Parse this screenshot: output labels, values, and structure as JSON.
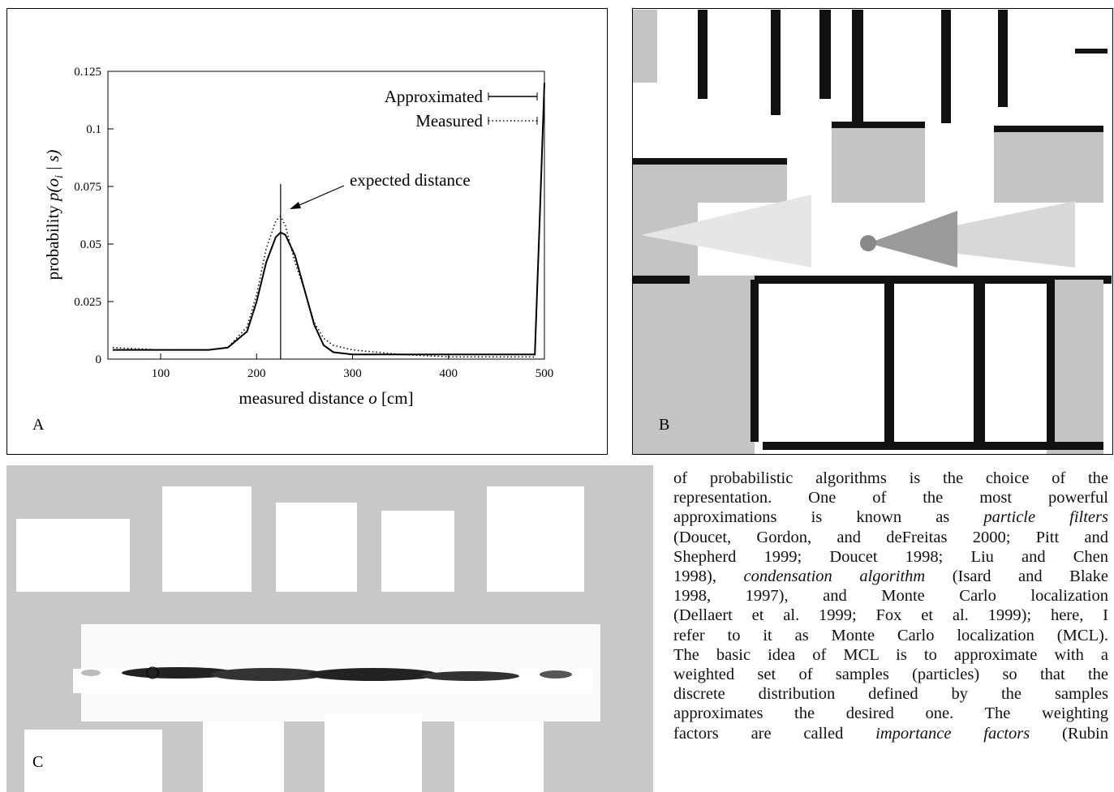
{
  "chart_data": {
    "type": "line",
    "xlabel": {
      "prefix": "measured distance ",
      "var": "o",
      "suffix": " [cm]"
    },
    "ylabel": {
      "prefix": "probability ",
      "var": "p(o",
      "sub": "i",
      "suffix": " | s)"
    },
    "x": [
      50,
      100,
      150,
      170,
      190,
      200,
      210,
      220,
      225,
      230,
      240,
      250,
      260,
      270,
      280,
      300,
      350,
      400,
      450,
      480,
      490,
      495,
      500
    ],
    "series": [
      {
        "name": "Approximated",
        "color": "#000000",
        "style": "solid",
        "values": [
          0.004,
          0.004,
          0.004,
          0.005,
          0.012,
          0.025,
          0.042,
          0.053,
          0.055,
          0.054,
          0.045,
          0.03,
          0.015,
          0.006,
          0.003,
          0.002,
          0.002,
          0.002,
          0.002,
          0.002,
          0.002,
          0.06,
          0.12
        ]
      },
      {
        "name": "Measured",
        "color": "#000000",
        "style": "dotted",
        "values": [
          0.005,
          0.004,
          0.004,
          0.005,
          0.014,
          0.028,
          0.048,
          0.06,
          0.062,
          0.058,
          0.042,
          0.03,
          0.016,
          0.009,
          0.006,
          0.004,
          0.002,
          0.001,
          0.001,
          0.001,
          0.001,
          0.06,
          0.12
        ]
      }
    ],
    "annotation": "expected distance",
    "expected_line": {
      "x": 225,
      "top": 0.076
    },
    "xlim": [
      45,
      500
    ],
    "ylim": [
      0,
      0.125
    ],
    "xticks": [
      100,
      200,
      300,
      400,
      500
    ],
    "yticks": [
      0,
      0.025,
      0.05,
      0.075,
      0.1,
      0.125
    ],
    "legend": "top-right"
  },
  "panel_labels": [
    "A",
    "B",
    "C"
  ],
  "text": {
    "lines": [
      [
        {
          "text": "of probabilistic algorithms is the choice of the"
        }
      ],
      [
        {
          "text": "representation. One of the most powerful"
        }
      ],
      [
        {
          "text": "approximations is known as "
        },
        {
          "text": "particle filters",
          "em": true
        }
      ],
      [
        {
          "text": "(Doucet, Gordon, and deFreitas 2000; Pitt and"
        }
      ],
      [
        {
          "text": "Shepherd 1999; Doucet 1998; Liu and Chen"
        }
      ],
      [
        {
          "text": "1998), "
        },
        {
          "text": "condensation algorithm",
          "em": true
        },
        {
          "text": " (Isard and Blake"
        }
      ],
      [
        {
          "text": "1998, 1997), and Monte Carlo localization"
        }
      ],
      [
        {
          "text": "(Dellaert et al. 1999; Fox et al. 1999); here, I"
        }
      ],
      [
        {
          "text": "refer to it as Monte Carlo localization (MCL)."
        }
      ],
      [
        {
          "text": "The basic idea of MCL is to approximate with a"
        }
      ],
      [
        {
          "text": "weighted set of samples (particles) so that the"
        }
      ],
      [
        {
          "text": "discrete distribution defined by the samples"
        }
      ],
      [
        {
          "text": "approximates the desired one. The weighting"
        }
      ],
      [
        {
          "text": "factors are called "
        },
        {
          "text": "importance factors",
          "em": true
        },
        {
          "text": " (Rubin"
        }
      ]
    ]
  }
}
